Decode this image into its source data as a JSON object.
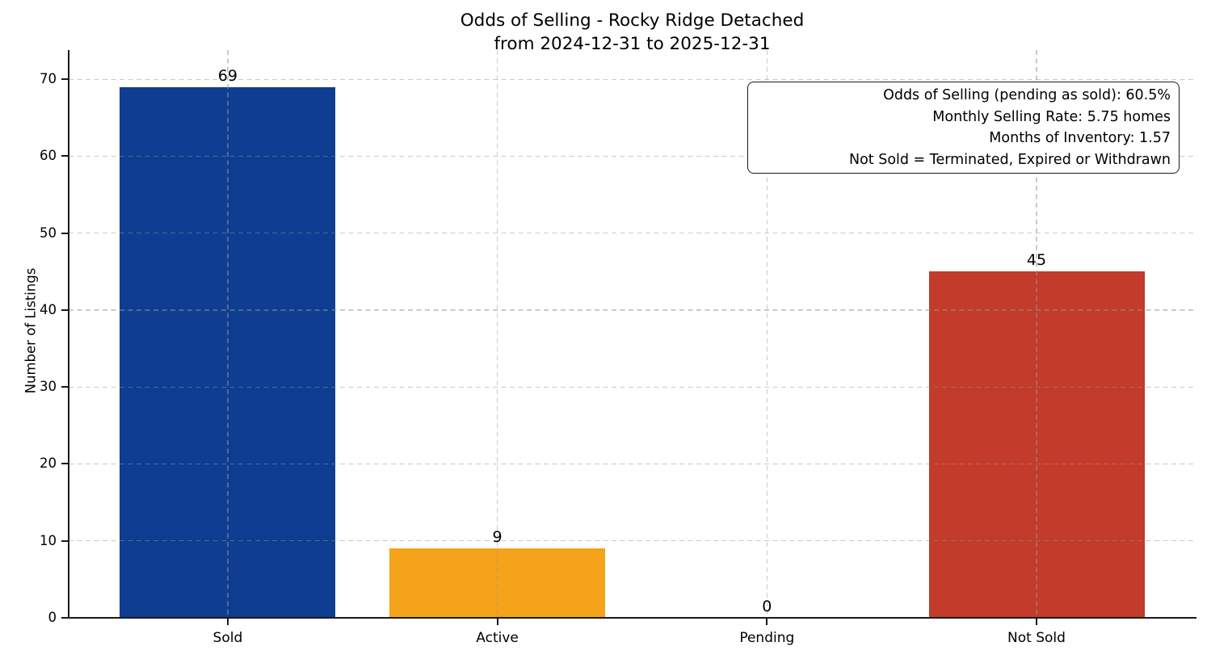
{
  "figure": {
    "title": "Odds of Selling - Rocky Ridge Detached",
    "subtitle": "from 2024-12-31 to 2025-12-31"
  },
  "chart_data": {
    "type": "bar",
    "title": "Odds of Selling - Rocky Ridge Detached",
    "subtitle": "from 2024-12-31 to 2025-12-31",
    "categories": [
      "Sold",
      "Active",
      "Pending",
      "Not Sold"
    ],
    "values": [
      69,
      9,
      0,
      45
    ],
    "value_labels": [
      "69",
      "9",
      "0",
      "45"
    ],
    "bar_colors": [
      "#0e3d91",
      "#f4a31b",
      null,
      "#c23b2b"
    ],
    "xlabel": "",
    "ylabel": "Number of Listings",
    "yticks": [
      0,
      10,
      20,
      30,
      40,
      50,
      60,
      70
    ],
    "ylim": [
      0,
      73.8
    ],
    "grid": {
      "visible": true,
      "style": "dashed",
      "axes": "both",
      "color_on_white": "#d8d8d8"
    },
    "legend": "none",
    "annotation_box": {
      "position": "top-right",
      "lines": [
        "Odds of Selling (pending as sold): 60.5%",
        "Monthly Selling Rate: 5.75 homes",
        "Months of Inventory: 1.57",
        "Not Sold = Terminated, Expired or Withdrawn"
      ]
    },
    "colors": {
      "axis": "#1a1a1a",
      "text": "#000000",
      "background": "#ffffff"
    }
  }
}
